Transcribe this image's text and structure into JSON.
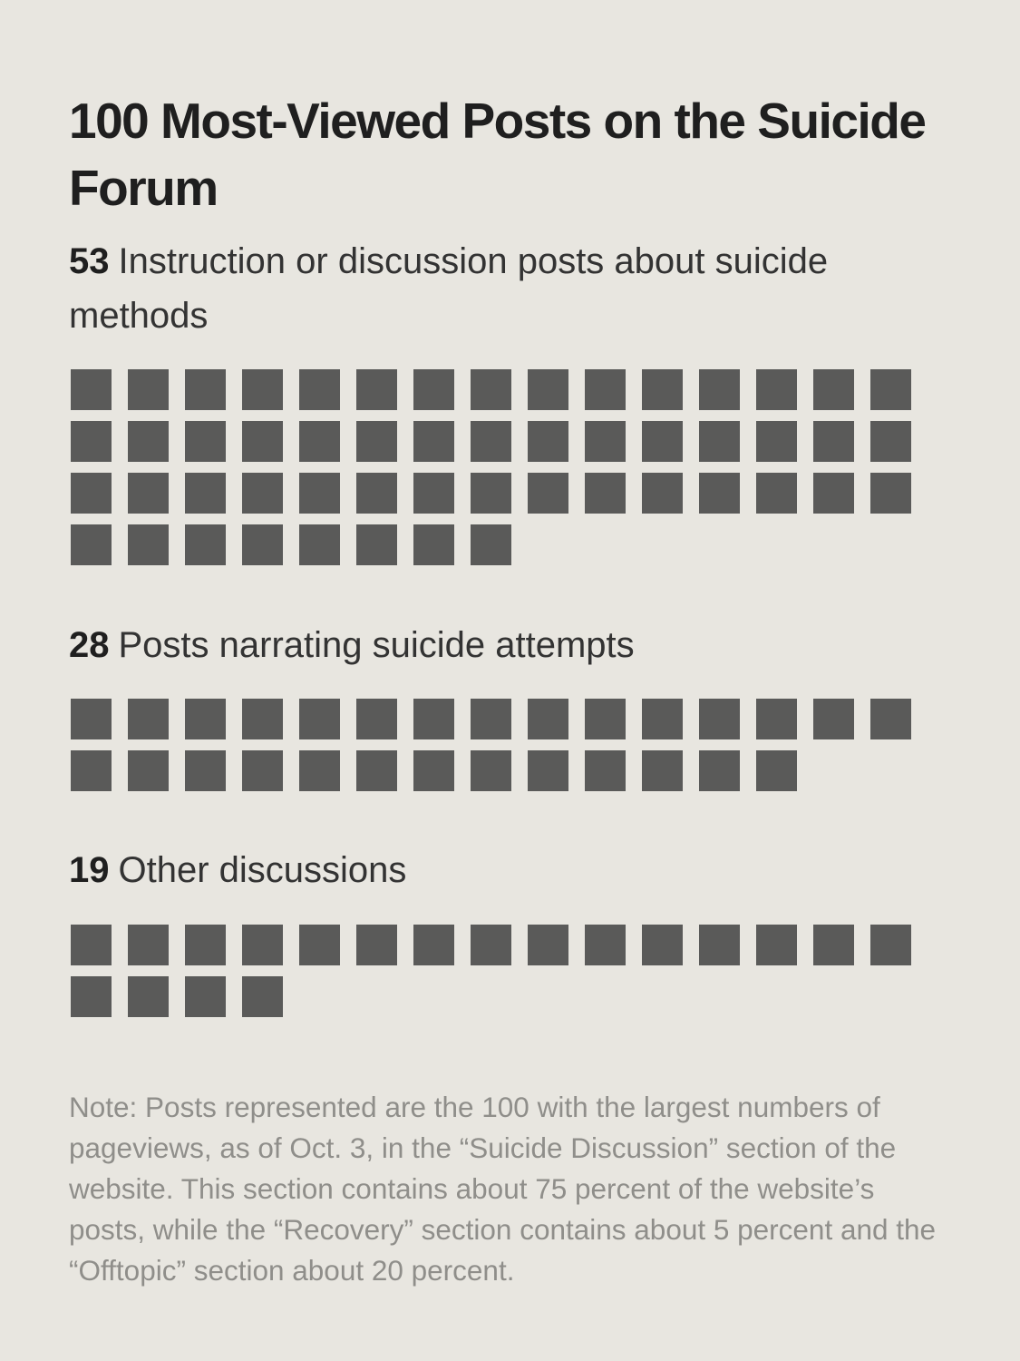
{
  "title": "100 Most-Viewed Posts on the Suicide Forum",
  "colors": {
    "background": "#e8e6e0",
    "square": "#5a5a59",
    "note_text": "#8f8e8a"
  },
  "note": "Note: Posts represented are the 100 with the largest numbers of pageviews, as of Oct. 3, in the “Suicide Discussion” section of the website. This section contains about 75 percent of the website’s posts, while the “Recovery” section contains about 5 percent and the “Offtopic” section about 20 percent.",
  "chart_data": {
    "type": "waffle",
    "title": "100 Most-Viewed Posts on the Suicide Forum",
    "total": 100,
    "unit": "posts",
    "squares_per_row": 15,
    "categories": [
      "Instruction or discussion posts about suicide methods",
      "Posts narrating suicide attempts",
      "Other discussions"
    ],
    "values": [
      53,
      28,
      19
    ],
    "groups": [
      {
        "count": "53",
        "label": "Instruction or discussion posts about suicide methods",
        "value": 53
      },
      {
        "count": "28",
        "label": "Posts narrating suicide attempts",
        "value": 28
      },
      {
        "count": "19",
        "label": "Other discussions",
        "value": 19
      }
    ]
  }
}
